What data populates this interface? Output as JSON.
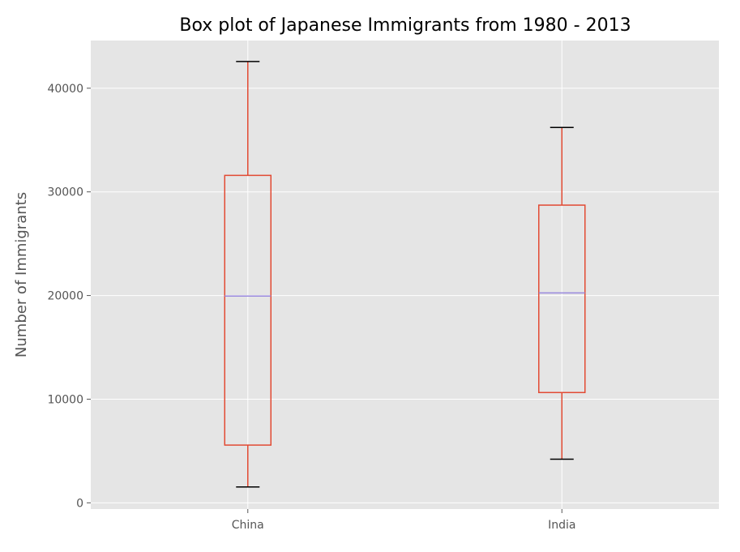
{
  "chart_data": {
    "type": "box",
    "title": "Box plot of Japanese Immigrants from 1980 - 2013",
    "xlabel": "",
    "ylabel": "Number of Immigrants",
    "ylim": [
      -600,
      44600
    ],
    "yticks": [
      0,
      10000,
      20000,
      30000,
      40000
    ],
    "ytick_labels": [
      "0",
      "10000",
      "20000",
      "30000",
      "40000"
    ],
    "grid": true,
    "categories": [
      "China",
      "India"
    ],
    "boxes": [
      {
        "category": "China",
        "whisker_low": 1530,
        "q1": 5570,
        "median": 19945,
        "q3": 31590,
        "whisker_high": 42580
      },
      {
        "category": "India",
        "whisker_low": 4210,
        "q1": 10640,
        "median": 20250,
        "q3": 28720,
        "whisker_high": 36210
      }
    ]
  },
  "colors": {
    "plot_background": "#E5E5E5",
    "grid": "#FFFFFF",
    "box": "#E24A33",
    "median": "#8EBA42",
    "median_line": "#9988DD",
    "whisker_cap": "#000000"
  }
}
